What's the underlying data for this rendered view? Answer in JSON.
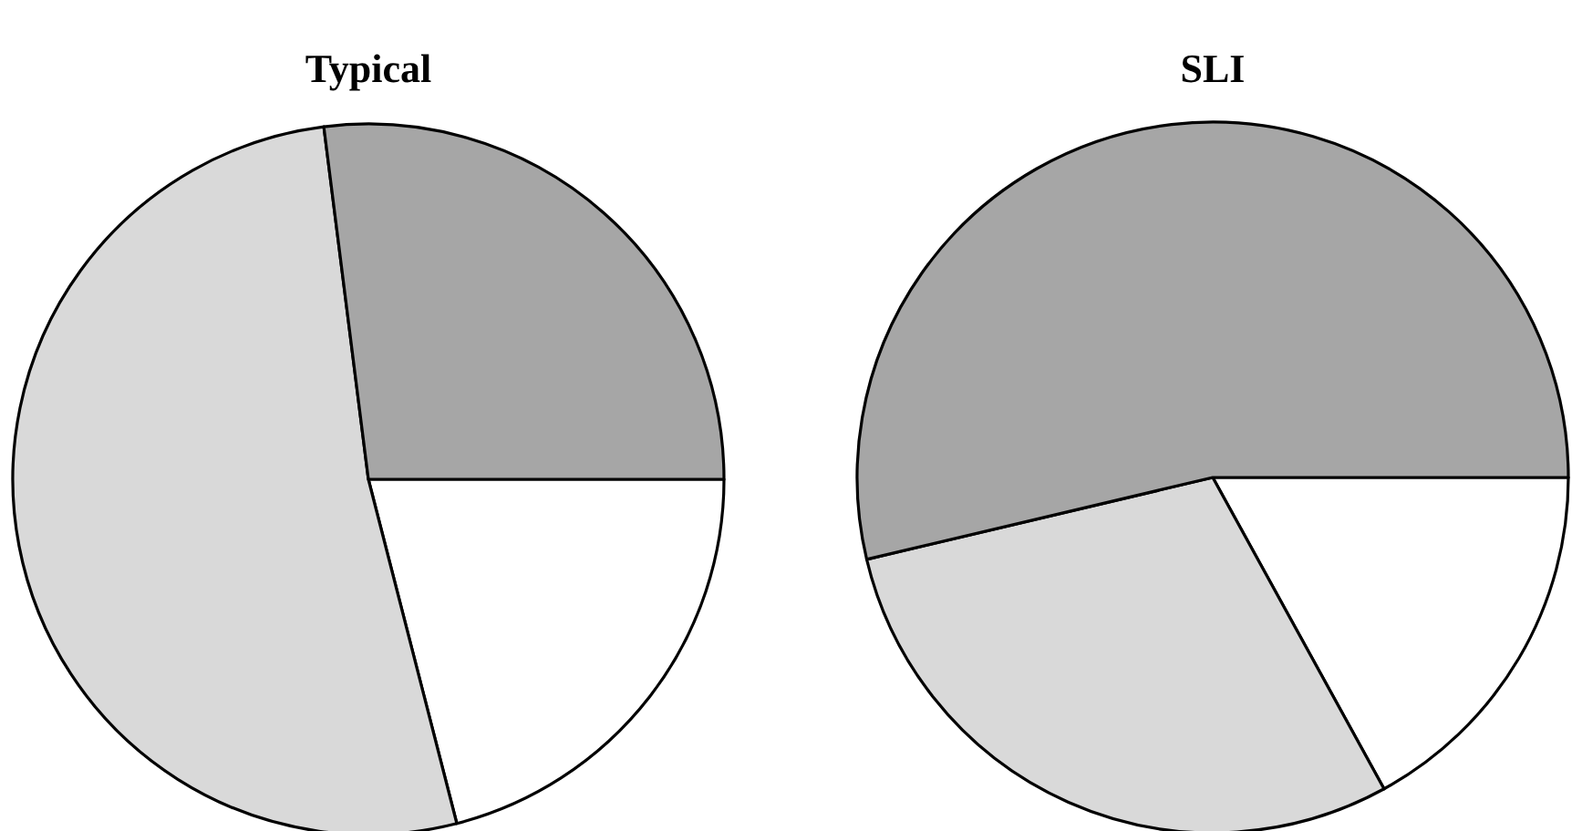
{
  "chart_data": [
    {
      "type": "pie",
      "title": "Typical",
      "categories": [
        null,
        null,
        null
      ],
      "values": [
        21,
        52,
        27
      ],
      "colors": [
        "#ffffff",
        "#d9d9d9",
        "#a6a6a6"
      ]
    },
    {
      "type": "pie",
      "title": "SLI",
      "categories": [
        null,
        null,
        null
      ],
      "values": [
        17,
        29.3,
        53.7
      ],
      "colors": [
        "#ffffff",
        "#d9d9d9",
        "#a6a6a6"
      ]
    }
  ]
}
